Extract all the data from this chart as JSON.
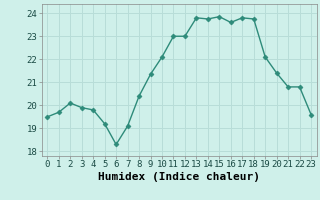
{
  "x": [
    0,
    1,
    2,
    3,
    4,
    5,
    6,
    7,
    8,
    9,
    10,
    11,
    12,
    13,
    14,
    15,
    16,
    17,
    18,
    19,
    20,
    21,
    22,
    23
  ],
  "y": [
    19.5,
    19.7,
    20.1,
    19.9,
    19.8,
    19.2,
    18.3,
    19.1,
    20.4,
    21.35,
    22.1,
    23.0,
    23.0,
    23.8,
    23.75,
    23.85,
    23.6,
    23.8,
    23.75,
    22.1,
    21.4,
    20.8,
    20.8,
    19.6
  ],
  "line_color": "#2e8b7a",
  "marker": "D",
  "marker_size": 2.5,
  "background_color": "#cff0ea",
  "grid_color": "#b8ddd8",
  "xlabel": "Humidex (Indice chaleur)",
  "xlabel_fontsize": 8,
  "ylim": [
    17.8,
    24.4
  ],
  "xlim": [
    -0.5,
    23.5
  ],
  "yticks": [
    18,
    19,
    20,
    21,
    22,
    23,
    24
  ],
  "xticks": [
    0,
    1,
    2,
    3,
    4,
    5,
    6,
    7,
    8,
    9,
    10,
    11,
    12,
    13,
    14,
    15,
    16,
    17,
    18,
    19,
    20,
    21,
    22,
    23
  ],
  "tick_fontsize": 6.5,
  "line_width": 1.0
}
